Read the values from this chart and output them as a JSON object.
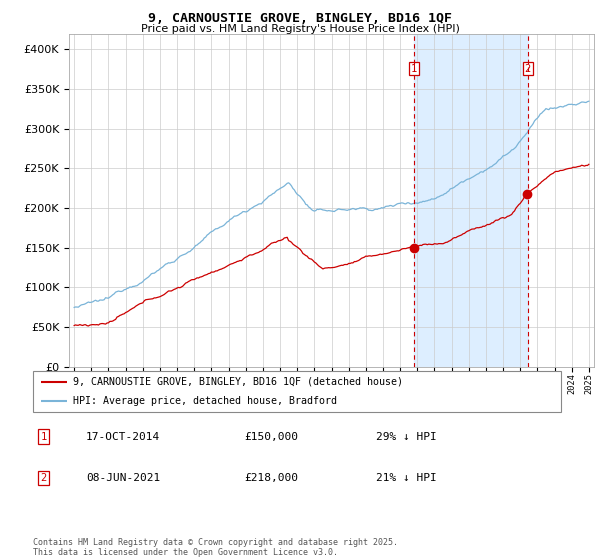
{
  "title": "9, CARNOUSTIE GROVE, BINGLEY, BD16 1QF",
  "subtitle": "Price paid vs. HM Land Registry's House Price Index (HPI)",
  "legend_line1": "9, CARNOUSTIE GROVE, BINGLEY, BD16 1QF (detached house)",
  "legend_line2": "HPI: Average price, detached house, Bradford",
  "sale1_date": "17-OCT-2014",
  "sale1_price": 150000,
  "sale1_note": "29% ↓ HPI",
  "sale2_date": "08-JUN-2021",
  "sale2_price": 218000,
  "sale2_note": "21% ↓ HPI",
  "footer": "Contains HM Land Registry data © Crown copyright and database right 2025.\nThis data is licensed under the Open Government Licence v3.0.",
  "hpi_color": "#7ab4d8",
  "property_color": "#cc0000",
  "vline_color": "#cc0000",
  "shade_color": "#ddeeff",
  "background_color": "#ffffff",
  "ylim": [
    0,
    420000
  ],
  "yticks": [
    0,
    50000,
    100000,
    150000,
    200000,
    250000,
    300000,
    350000,
    400000
  ],
  "year_start": 1995,
  "year_end": 2025,
  "sale1_year": 2014.8,
  "sale2_year": 2021.44
}
